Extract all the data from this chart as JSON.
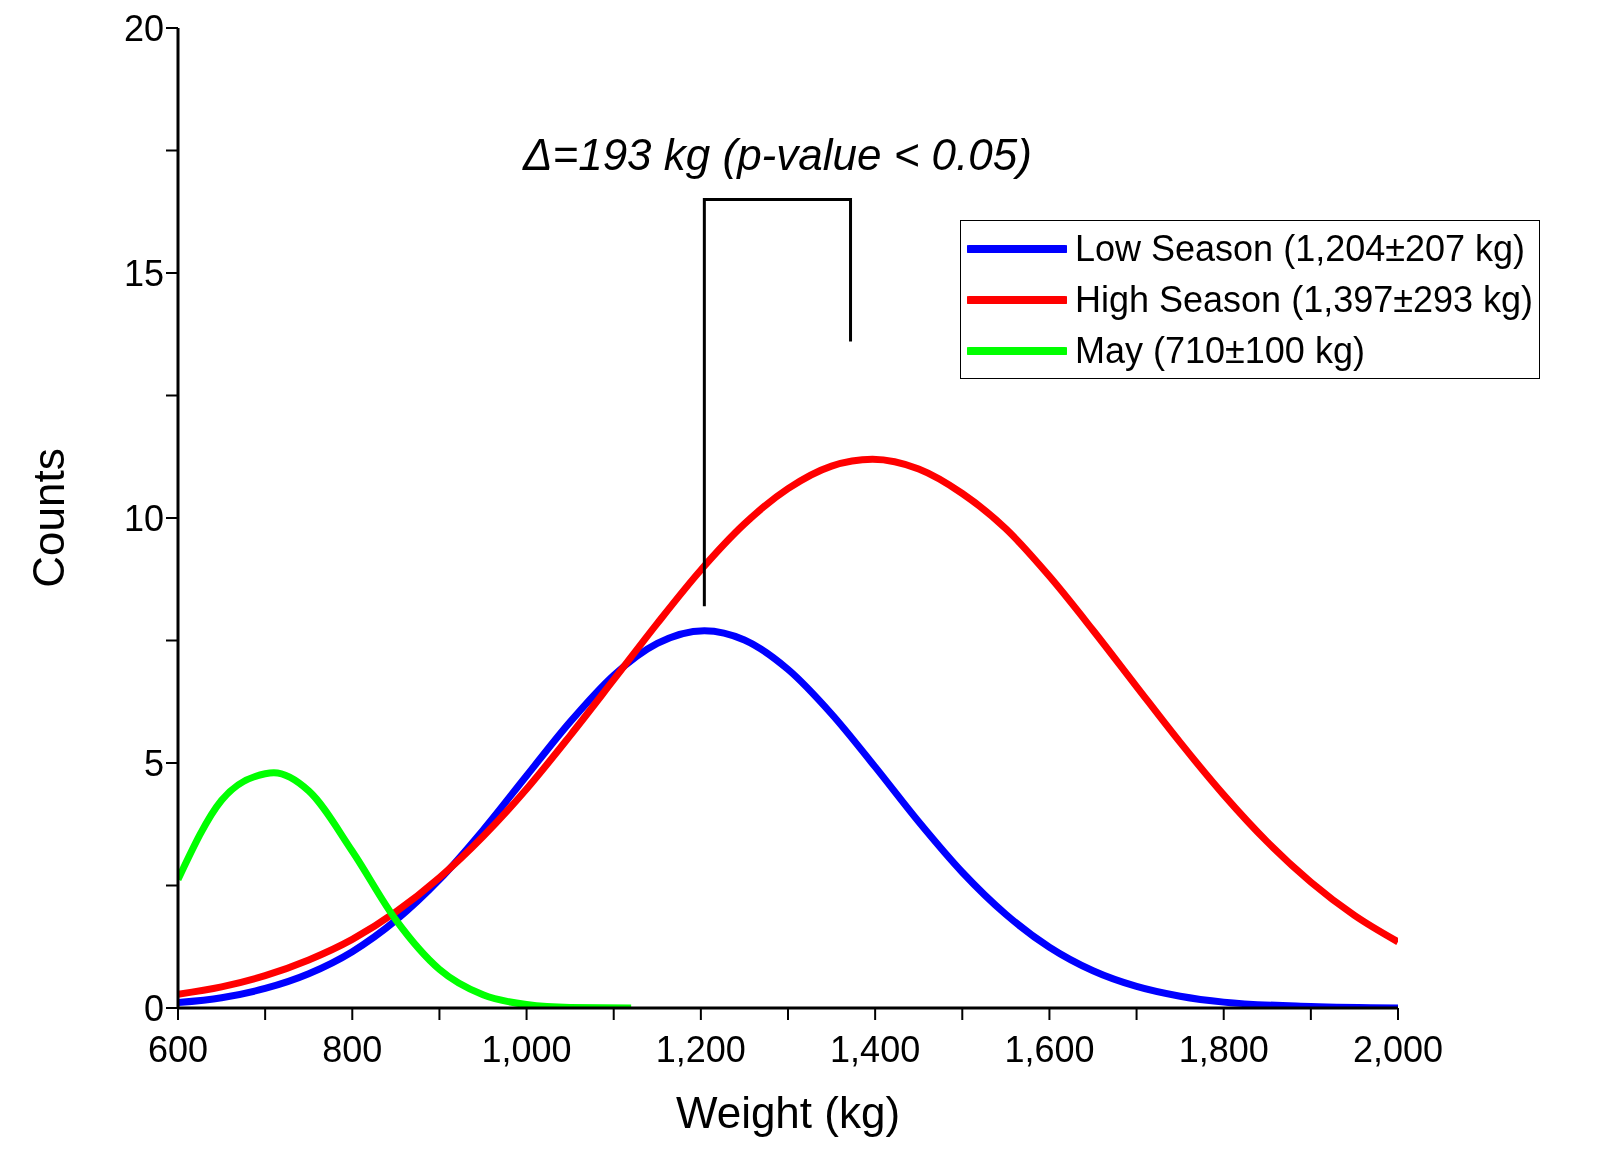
{
  "chart_data": {
    "type": "line",
    "xlabel": "Weight (kg)",
    "ylabel": "Counts",
    "xlim": [
      600,
      2000
    ],
    "ylim": [
      0,
      20
    ],
    "xticks": [
      600,
      {
        "value": 700,
        "label": null
      },
      800,
      {
        "value": 900,
        "label": null
      },
      {
        "value": 1000,
        "label": "1,000"
      },
      {
        "value": 1100,
        "label": null
      },
      {
        "value": 1200,
        "label": "1,200"
      },
      {
        "value": 1300,
        "label": null
      },
      {
        "value": 1400,
        "label": "1,400"
      },
      {
        "value": 1500,
        "label": null
      },
      {
        "value": 1600,
        "label": "1,600"
      },
      {
        "value": 1700,
        "label": null
      },
      {
        "value": 1800,
        "label": "1,800"
      },
      {
        "value": 1900,
        "label": null
      },
      {
        "value": 2000,
        "label": "2,000"
      }
    ],
    "yticks": [
      0,
      {
        "value": 2.5,
        "label": null
      },
      5,
      {
        "value": 7.5,
        "label": null
      },
      10,
      {
        "value": 12.5,
        "label": null
      },
      15,
      {
        "value": 17.5,
        "label": null
      },
      20
    ],
    "legend": "top right",
    "marker": "none",
    "line_style": "solid",
    "annotations": [
      "Δ=193 kg (p-value < 0.05)"
    ],
    "series": [
      {
        "name": "Low Season (1,204±207 kg)",
        "color": "#0000ff",
        "x": [
          600,
          650,
          700,
          750,
          800,
          850,
          900,
          950,
          1000,
          1050,
          1100,
          1150,
          1204,
          1250,
          1300,
          1350,
          1400,
          1450,
          1500,
          1550,
          1600,
          1650,
          1700,
          1750,
          1800,
          1900,
          2000
        ],
        "values": [
          0.11,
          0.21,
          0.4,
          0.7,
          1.15,
          1.79,
          2.62,
          3.63,
          4.74,
          5.84,
          6.79,
          7.44,
          7.7,
          7.51,
          6.91,
          6.0,
          4.92,
          3.8,
          2.77,
          1.91,
          1.24,
          0.76,
          0.44,
          0.24,
          0.12,
          0.03,
          0.0
        ]
      },
      {
        "name": "High Season (1,397±293 kg)",
        "color": "#ff0000",
        "x": [
          600,
          650,
          700,
          750,
          800,
          850,
          900,
          950,
          1000,
          1050,
          1100,
          1150,
          1200,
          1250,
          1300,
          1350,
          1397,
          1450,
          1500,
          1550,
          1600,
          1650,
          1700,
          1750,
          1800,
          1850,
          1900,
          1950,
          2000
        ],
        "values": [
          0.28,
          0.43,
          0.66,
          0.98,
          1.4,
          1.96,
          2.66,
          3.5,
          4.47,
          5.56,
          6.7,
          7.85,
          8.94,
          9.88,
          10.6,
          11.06,
          11.2,
          11.0,
          10.5,
          9.78,
          8.81,
          7.71,
          6.56,
          5.42,
          4.35,
          3.39,
          2.57,
          1.89,
          1.35
        ]
      },
      {
        "name": "May (710±100 kg)",
        "color": "#00ff00",
        "x": [
          600,
          650,
          700,
          710,
          750,
          800,
          850,
          900,
          950,
          1000,
          1050,
          1120
        ],
        "values": [
          2.62,
          4.24,
          4.78,
          4.8,
          4.43,
          3.2,
          1.8,
          0.79,
          0.27,
          0.07,
          0.01,
          0.0
        ]
      }
    ]
  }
}
